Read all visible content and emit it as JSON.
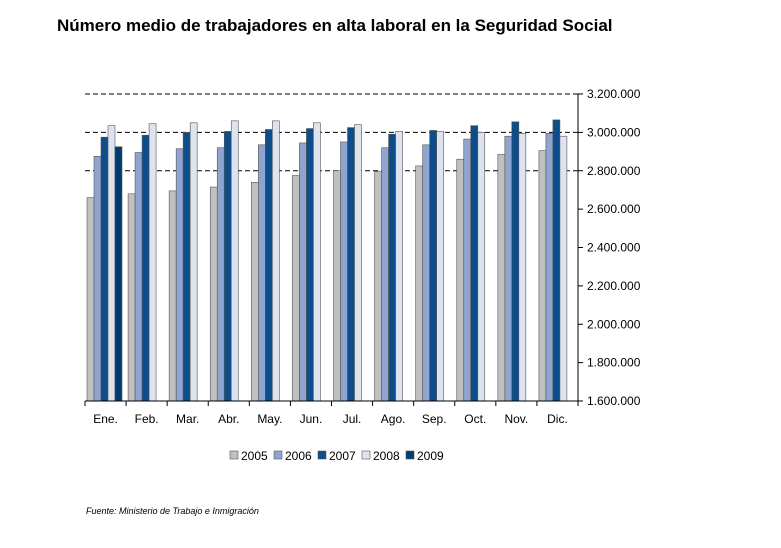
{
  "chart_data": {
    "type": "bar",
    "title": "Número medio de trabajadores en alta laboral en la Seguridad Social",
    "categories": [
      "Ene.",
      "Feb.",
      "Mar.",
      "Abr.",
      "May.",
      "Jun.",
      "Jul.",
      "Ago.",
      "Sep.",
      "Oct.",
      "Nov.",
      "Dic."
    ],
    "series": [
      {
        "name": "2005",
        "color": "#c0c0c0",
        "values": [
          2660000,
          2680000,
          2695000,
          2715000,
          2740000,
          2775000,
          2800000,
          2795000,
          2825000,
          2860000,
          2885000,
          2905000
        ]
      },
      {
        "name": "2006",
        "color": "#8fa4d0",
        "values": [
          2875000,
          2895000,
          2915000,
          2920000,
          2935000,
          2945000,
          2950000,
          2920000,
          2935000,
          2965000,
          2980000,
          2995000
        ]
      },
      {
        "name": "2007",
        "color": "#0d4d8a",
        "values": [
          2975000,
          2985000,
          3000000,
          3005000,
          3015000,
          3020000,
          3025000,
          2990000,
          3010000,
          3035000,
          3055000,
          3065000
        ]
      },
      {
        "name": "2008",
        "color": "#dde3ef",
        "values": [
          3035000,
          3045000,
          3050000,
          3060000,
          3060000,
          3050000,
          3040000,
          3005000,
          3005000,
          3000000,
          2995000,
          2980000
        ]
      },
      {
        "name": "2009",
        "color": "#003c72",
        "values": [
          2925000,
          null,
          null,
          null,
          null,
          null,
          null,
          null,
          null,
          null,
          null,
          null
        ]
      }
    ],
    "y_ticks": [
      "3.200.000",
      "3.000.000",
      "2.800.000",
      "2.600.000",
      "2.400.000",
      "2.200.000",
      "2.000.000",
      "1.800.000",
      "1.600.000"
    ],
    "ylim": [
      1600000,
      3200000
    ],
    "gridlines_dashed_at": [
      3200000,
      3000000,
      2800000
    ],
    "legend_position": "bottom",
    "source": "Fuente: Ministerio de Trabajo e Inmigración"
  }
}
